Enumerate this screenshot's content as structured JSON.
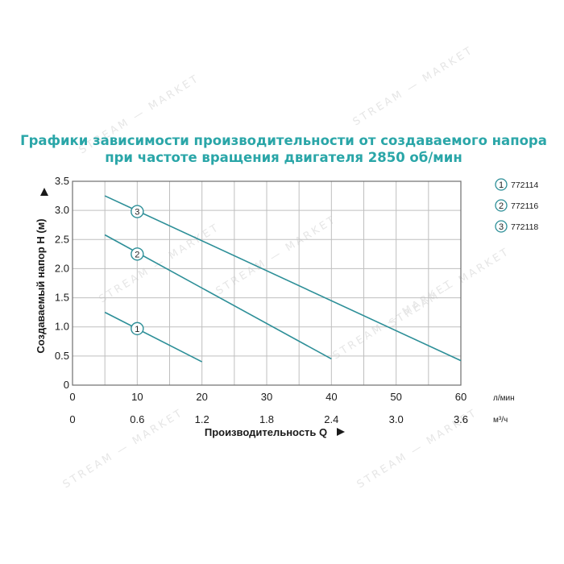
{
  "chart_data": {
    "type": "line",
    "title_line1": "Графики зависимости производительности от создаваемого напора",
    "title_line2": "при частоте вращения двигателя 2850 об/мин",
    "ylabel": "Создаваемый напор Н (м)",
    "xlabel": "Производительность Q",
    "x_unit_primary": "л/мин",
    "x_unit_secondary": "м³/ч",
    "xlim": [
      0,
      60
    ],
    "ylim": [
      0,
      3.5
    ],
    "x_ticks": [
      "0",
      "10",
      "20",
      "30",
      "40",
      "50",
      "60"
    ],
    "x_ticks_secondary": [
      "0",
      "0.6",
      "1.2",
      "1.8",
      "2.4",
      "3.0",
      "3.6"
    ],
    "y_ticks": [
      "0",
      "0.5",
      "1.0",
      "1.5",
      "2.0",
      "2.5",
      "3.0",
      "3.5"
    ],
    "grid": true,
    "legend_position": "right",
    "line_color": "#2d8f98",
    "series": [
      {
        "name": "772114",
        "marker": "1",
        "x": [
          5,
          20
        ],
        "y": [
          1.25,
          0.4
        ],
        "marker_at": [
          10,
          0.97
        ]
      },
      {
        "name": "772116",
        "marker": "2",
        "x": [
          5,
          40
        ],
        "y": [
          2.58,
          0.45
        ],
        "marker_at": [
          10,
          2.25
        ]
      },
      {
        "name": "772118",
        "marker": "3",
        "x": [
          5,
          60
        ],
        "y": [
          3.25,
          0.42
        ],
        "marker_at": [
          10,
          2.98
        ]
      }
    ]
  },
  "watermark": "STREAM — MARKET"
}
